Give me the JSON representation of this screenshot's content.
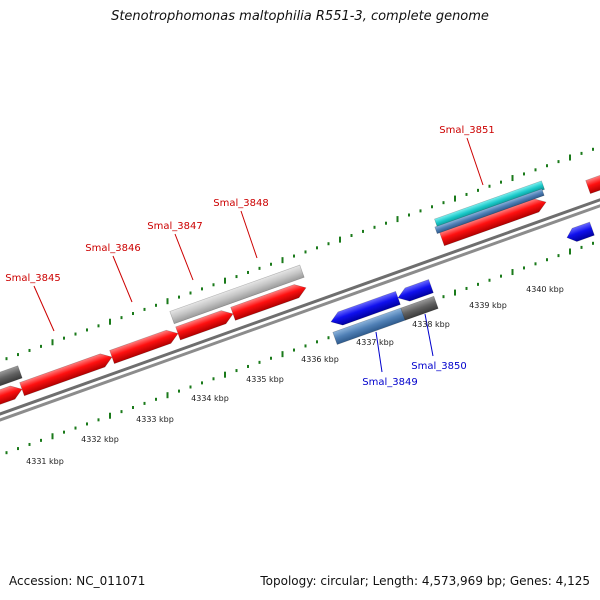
{
  "title": "Stenotrophomonas maltophilia R551-3, complete genome",
  "footer": {
    "accession": "Accession: NC_011071",
    "summary": "Topology: circular; Length: 4,573,969 bp; Genes: 4,125"
  },
  "scale": {
    "unit": "kbp",
    "ticks": [
      {
        "kbp": 4331,
        "label": "4331 kbp"
      },
      {
        "kbp": 4332,
        "label": "4332 kbp"
      },
      {
        "kbp": 4333,
        "label": "4333 kbp"
      },
      {
        "kbp": 4334,
        "label": "4334 kbp"
      },
      {
        "kbp": 4335,
        "label": "4335 kbp"
      },
      {
        "kbp": 4336,
        "label": "4336 kbp"
      },
      {
        "kbp": 4337,
        "label": "4337 kbp"
      },
      {
        "kbp": 4338,
        "label": "4338 kbp"
      },
      {
        "kbp": 4339,
        "label": "4339 kbp"
      },
      {
        "kbp": 4340,
        "label": "4340 kbp"
      }
    ]
  },
  "genes": [
    {
      "label": "Smal_3845",
      "strand": "forward",
      "color": "#cc0000"
    },
    {
      "label": "Smal_3846",
      "strand": "forward",
      "color": "#cc0000"
    },
    {
      "label": "Smal_3847",
      "strand": "forward",
      "color": "#cc0000"
    },
    {
      "label": "Smal_3848",
      "strand": "forward",
      "color": "#cc0000"
    },
    {
      "label": "Smal_3849",
      "strand": "reverse",
      "color": "#0000cc"
    },
    {
      "label": "Smal_3850",
      "strand": "reverse",
      "color": "#0000cc"
    },
    {
      "label": "Smal_3851",
      "strand": "forward",
      "color": "#cc0000"
    }
  ],
  "colors": {
    "cds_forward": "#ff0000",
    "cds_reverse": "#0000ee",
    "backbone": "#808080",
    "tick": "#1a7a1a",
    "feature_gray": "#bdbdbd",
    "feature_dark": "#606060",
    "feature_cyan": "#19c8c8",
    "feature_steel": "#4f7fb5"
  }
}
